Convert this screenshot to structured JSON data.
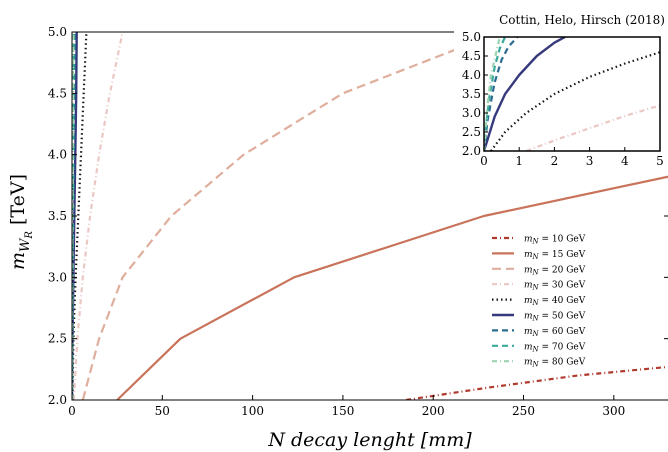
{
  "credit": "Cottin, Helo, Hirsch (2018)",
  "chart_data": {
    "type": "line",
    "title": "",
    "xlabel": "N decay lenght [mm]",
    "ylabel": "m_{W_R} [TeV]",
    "xlim": [
      0,
      330
    ],
    "ylim": [
      2.0,
      5.0
    ],
    "xticks": [
      0,
      50,
      100,
      150,
      200,
      250,
      300
    ],
    "xtick_labels": [
      "0",
      "50",
      "100",
      "150",
      "200",
      "250",
      "300"
    ],
    "yticks": [
      2.0,
      2.5,
      3.0,
      3.5,
      4.0,
      4.5,
      5.0
    ],
    "ytick_labels": [
      "2.0",
      "2.5",
      "3.0",
      "3.5",
      "4.0",
      "4.5",
      "5.0"
    ],
    "grid": false,
    "legend_position": "lower-right",
    "series": [
      {
        "name": "m_N = 10 GeV",
        "color": "#b03a2e",
        "dash": "5,3,1,3",
        "width": 2.2,
        "x": [
          185,
          230,
          280,
          330
        ],
        "y": [
          2.0,
          2.1,
          2.2,
          2.27
        ]
      },
      {
        "name": "m_N = 15 GeV",
        "color": "#c8735a",
        "dash": "",
        "width": 2.2,
        "x": [
          25,
          60,
          123,
          228,
          330
        ],
        "y": [
          2.0,
          2.5,
          3.0,
          3.5,
          3.82
        ]
      },
      {
        "name": "m_N = 20 GeV",
        "color": "#dfae9c",
        "dash": "9,5",
        "width": 2.2,
        "x": [
          6,
          15,
          28,
          55,
          95,
          150,
          220,
          245
        ],
        "y": [
          2.0,
          2.5,
          3.0,
          3.5,
          4.0,
          4.5,
          4.9,
          5.0
        ]
      },
      {
        "name": "m_N = 30 GeV",
        "color": "#ebc7c3",
        "dash": "5,3,1,3",
        "width": 2.2,
        "x": [
          1,
          3,
          6,
          10,
          15,
          21,
          28
        ],
        "y": [
          2.0,
          2.5,
          3.0,
          3.5,
          4.0,
          4.5,
          5.0
        ]
      },
      {
        "name": "m_N = 40 GeV",
        "color": "#151515",
        "dash": "1.5,3",
        "width": 2.2,
        "x": [
          0.2,
          0.8,
          2,
          3.5,
          5,
          6.5,
          8
        ],
        "y": [
          2.0,
          2.5,
          3.0,
          3.5,
          4.0,
          4.5,
          5.0
        ]
      },
      {
        "name": "m_N = 50 GeV",
        "color": "#363a7c",
        "dash": "",
        "width": 2.4,
        "x": [
          0,
          0.3,
          0.8,
          1.3,
          1.8,
          2.3,
          2.6
        ],
        "y": [
          2.0,
          2.5,
          3.0,
          3.5,
          4.0,
          4.5,
          5.0
        ]
      },
      {
        "name": "m_N = 60 GeV",
        "color": "#2a6b8e",
        "dash": "6,4",
        "width": 2.2,
        "x": [
          0,
          0.15,
          0.4,
          0.7,
          1.0,
          1.3,
          1.6
        ],
        "y": [
          2.0,
          2.5,
          3.0,
          3.5,
          4.0,
          4.5,
          5.0
        ]
      },
      {
        "name": "m_N = 70 GeV",
        "color": "#3aa89a",
        "dash": "6,4",
        "width": 2.2,
        "x": [
          0,
          0.1,
          0.25,
          0.45,
          0.65,
          0.85,
          1.0
        ],
        "y": [
          2.0,
          2.5,
          3.0,
          3.5,
          4.0,
          4.5,
          5.0
        ]
      },
      {
        "name": "m_N = 80 GeV",
        "color": "#9dd3b0",
        "dash": "5,3,1,3",
        "width": 2.2,
        "x": [
          0,
          0.05,
          0.15,
          0.3,
          0.45,
          0.6,
          0.75
        ],
        "y": [
          2.0,
          2.5,
          3.0,
          3.5,
          4.0,
          4.5,
          5.0
        ]
      }
    ],
    "legend_labels": [
      "= 10 GeV",
      "= 15 GeV",
      "= 20 GeV",
      "= 30 GeV",
      "= 40 GeV",
      "= 50 GeV",
      "= 60 GeV",
      "= 70 GeV",
      "= 80 GeV"
    ],
    "inset": {
      "xlim": [
        0,
        5
      ],
      "ylim": [
        2.0,
        5.0
      ],
      "xticks": [
        0,
        1,
        2,
        3,
        4,
        5
      ],
      "xtick_labels": [
        "0",
        "1",
        "2",
        "3",
        "4",
        "5"
      ],
      "yticks": [
        2.0,
        2.5,
        3.0,
        3.5,
        4.0,
        4.5,
        5.0
      ],
      "ytick_labels": [
        "2.0",
        "2.5",
        "3.0",
        "3.5",
        "4.0",
        "4.5",
        "5.0"
      ],
      "series": [
        {
          "name": "m_N = 30 GeV",
          "color": "#ebc7c3",
          "dash": "5,3,1,3",
          "width": 2.2,
          "x": [
            1.2,
            2,
            3,
            4,
            5
          ],
          "y": [
            2.0,
            2.28,
            2.6,
            2.92,
            3.2
          ]
        },
        {
          "name": "m_N = 40 GeV",
          "color": "#151515",
          "dash": "1.5,3",
          "width": 2.2,
          "x": [
            0.2,
            0.6,
            1.2,
            2,
            3,
            4,
            5
          ],
          "y": [
            2.0,
            2.5,
            3.0,
            3.5,
            3.95,
            4.3,
            4.6
          ]
        },
        {
          "name": "m_N = 50 GeV",
          "color": "#363a7c",
          "dash": "",
          "width": 2.4,
          "x": [
            0,
            0.3,
            0.6,
            1.0,
            1.5,
            2.0,
            2.3
          ],
          "y": [
            2.0,
            2.9,
            3.5,
            4.0,
            4.5,
            4.85,
            5.0
          ]
        },
        {
          "name": "m_N = 60 GeV",
          "color": "#2a6b8e",
          "dash": "6,4",
          "width": 2.2,
          "x": [
            0,
            0.1,
            0.3,
            0.5,
            0.7,
            0.95
          ],
          "y": [
            2.0,
            2.8,
            3.8,
            4.4,
            4.75,
            5.0
          ]
        },
        {
          "name": "m_N = 70 GeV",
          "color": "#3aa89a",
          "dash": "6,4",
          "width": 2.2,
          "x": [
            0,
            0.05,
            0.15,
            0.3,
            0.45,
            0.6
          ],
          "y": [
            2.0,
            2.6,
            3.4,
            4.2,
            4.7,
            5.0
          ]
        },
        {
          "name": "m_N = 80 GeV",
          "color": "#9dd3b0",
          "dash": "5,3,1,3",
          "width": 2.2,
          "x": [
            0,
            0.04,
            0.1,
            0.2,
            0.35,
            0.45
          ],
          "y": [
            2.0,
            2.5,
            3.2,
            4.0,
            4.6,
            5.0
          ]
        }
      ]
    }
  }
}
